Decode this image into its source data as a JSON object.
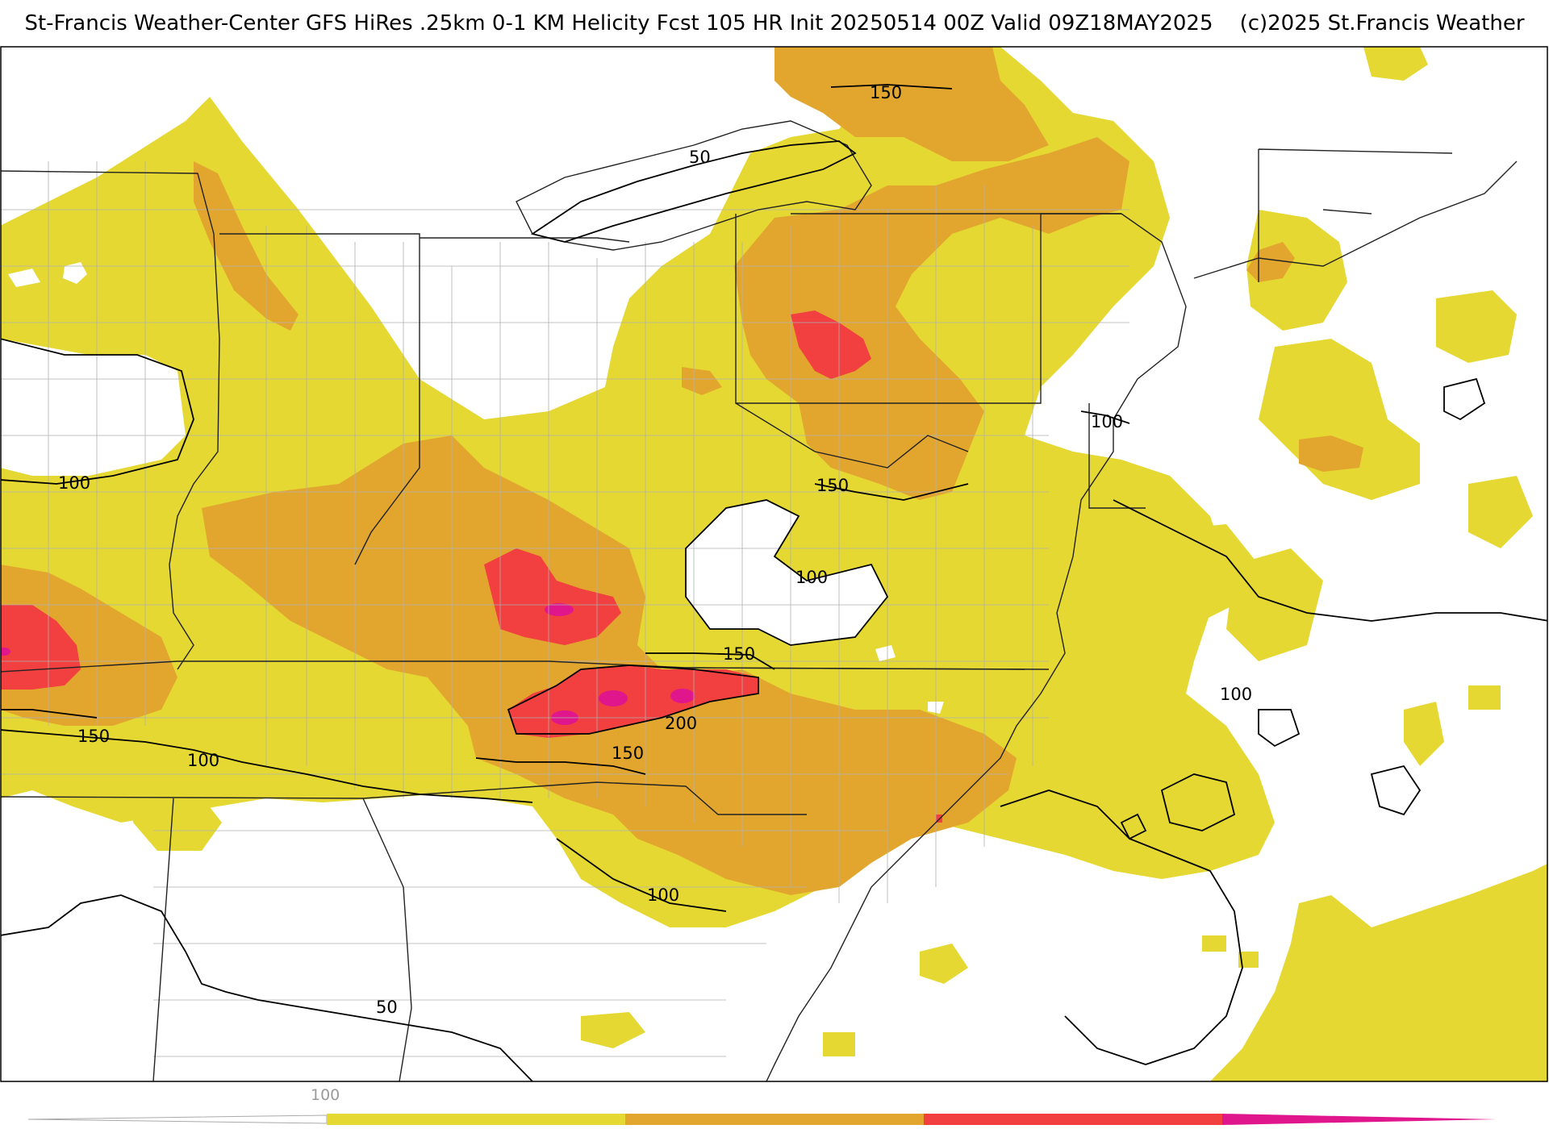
{
  "header": {
    "title": "St-Francis Weather-Center GFS HiRes .25km 0-1 KM Helicity Fcst 105 HR Init 20250514 00Z  Valid 09Z18MAY2025",
    "copyright": "(c)2025 St.Francis Weather"
  },
  "colors": {
    "band_100_150": "#e5d833",
    "band_150_200": "#e2a62f",
    "band_200_250": "#f23f3f",
    "band_250_plus": "#e0168c",
    "contour_line": "#000000",
    "boundary_line": "#222222",
    "county_line": "#aaaaaa"
  },
  "contour_labels": [
    {
      "id": "c150-n",
      "text": "150"
    },
    {
      "id": "c50-n",
      "text": "50"
    },
    {
      "id": "c100-w",
      "text": "100"
    },
    {
      "id": "c100-de",
      "text": "100"
    },
    {
      "id": "c150-pa",
      "text": "150"
    },
    {
      "id": "c100-va",
      "text": "100"
    },
    {
      "id": "c150-tn",
      "text": "150"
    },
    {
      "id": "c200-tn",
      "text": "200"
    },
    {
      "id": "c150-tn2",
      "text": "150"
    },
    {
      "id": "c150-sw",
      "text": "150"
    },
    {
      "id": "c100-sw",
      "text": "100"
    },
    {
      "id": "c100-atl",
      "text": "100"
    },
    {
      "id": "c100-sc",
      "text": "100"
    },
    {
      "id": "c50-s",
      "text": "50"
    }
  ],
  "colorbar": {
    "tick_label": "100",
    "bands": [
      {
        "id": "low",
        "color": "#e5d833"
      },
      {
        "id": "mid",
        "color": "#e2a62f"
      },
      {
        "id": "high",
        "color": "#f23f3f"
      },
      {
        "id": "extreme",
        "color": "#e0168c"
      }
    ]
  }
}
